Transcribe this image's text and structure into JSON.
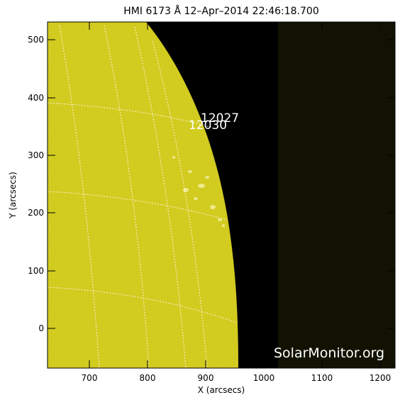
{
  "title": "HMI 6173 Å 12–Apr–2014 22:46:18.700",
  "x_label": "X (arcsecs)",
  "y_label": "Y (arcsecs)",
  "x_ticks": [
    "700",
    "800",
    "900",
    "1000",
    "1100",
    "1200"
  ],
  "y_ticks": [
    "500",
    "400",
    "300",
    "200",
    "100",
    "0"
  ],
  "regions": [
    {
      "label": "12027"
    },
    {
      "label": "12030"
    }
  ],
  "credit": "SolarMonitor.org",
  "colors": {
    "disk": "#cfc81a",
    "space": "#000000",
    "dark_panel": "#121203",
    "grid": "#ffffff"
  }
}
